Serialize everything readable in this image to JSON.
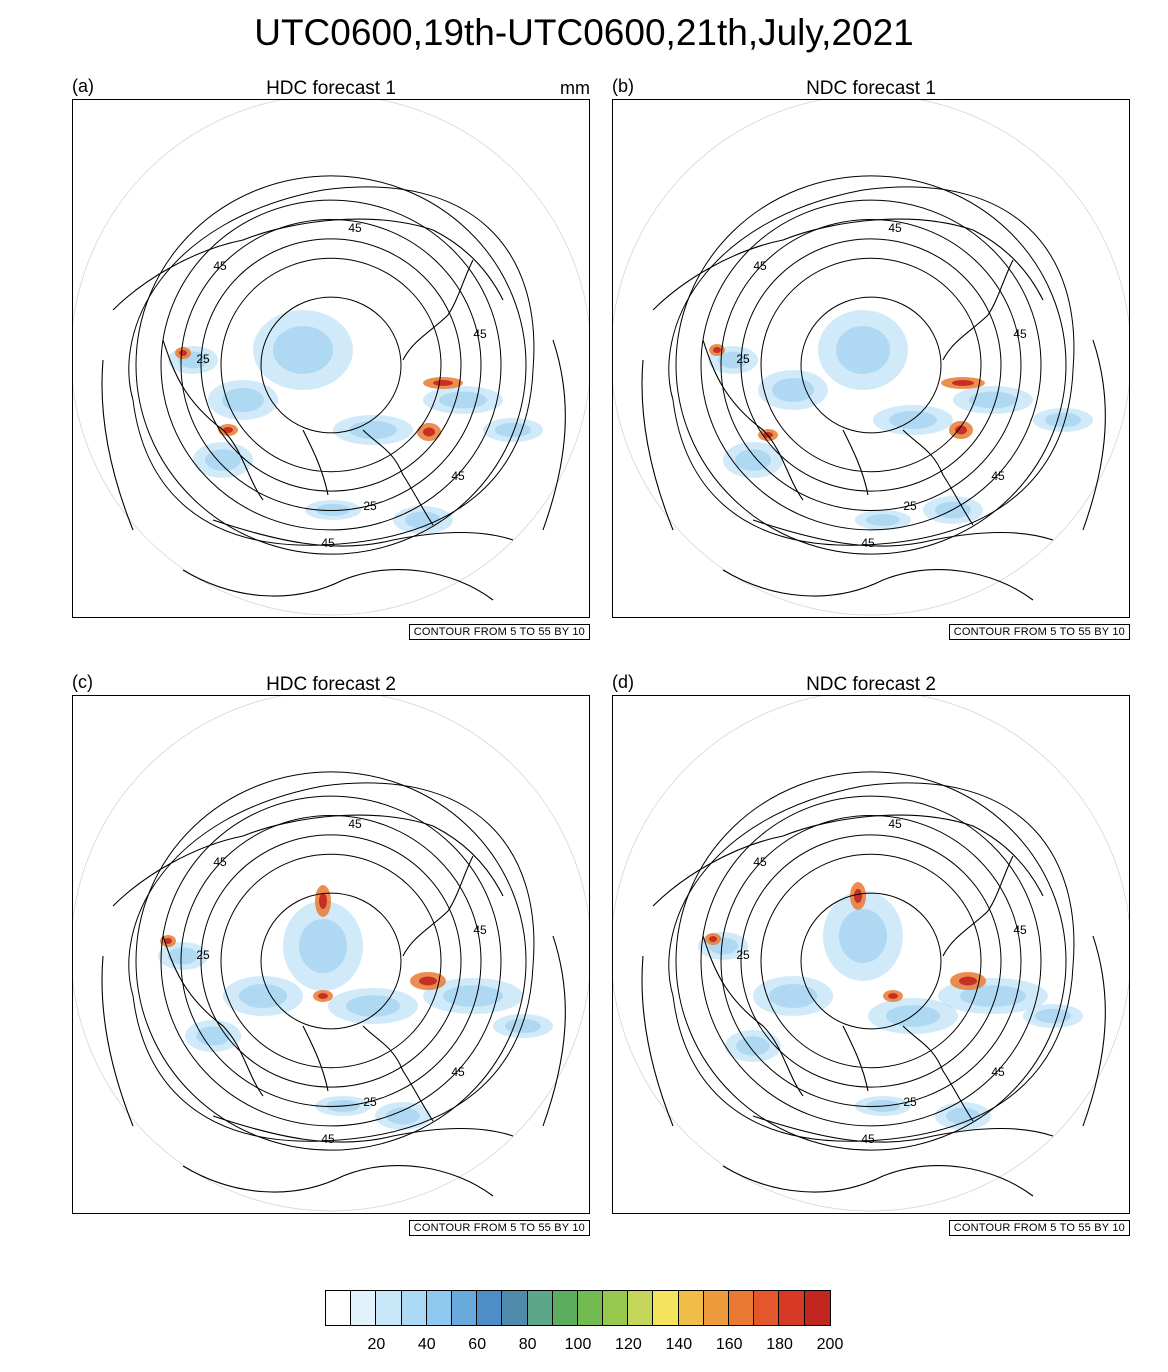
{
  "title": "UTC0600,19th-UTC0600,21th,July,2021",
  "panels": [
    {
      "letter": "(a)",
      "title": "HDC forecast 1",
      "units": "mm",
      "contour_info": "CONTOUR FROM 5 TO 55 BY 10"
    },
    {
      "letter": "(b)",
      "title": "NDC forecast 1",
      "units": "",
      "contour_info": "CONTOUR FROM 5 TO 55 BY 10"
    },
    {
      "letter": "(c)",
      "title": "HDC forecast 2",
      "units": "",
      "contour_info": "CONTOUR FROM 5 TO 55 BY 10"
    },
    {
      "letter": "(d)",
      "title": "NDC forecast 2",
      "units": "",
      "contour_info": "CONTOUR FROM 5 TO 55 BY 10"
    }
  ],
  "contour_labels": [
    "45",
    "45",
    "25",
    "45",
    "45",
    "25",
    "45"
  ],
  "colorbar": {
    "colors": [
      "#ffffff",
      "#e1f2fb",
      "#c8e7f8",
      "#acd9f4",
      "#8ec8ee",
      "#6aa9dc",
      "#4d8ec8",
      "#4f8aaa",
      "#5ea68a",
      "#5dad5e",
      "#72bb4f",
      "#97c94e",
      "#c3d659",
      "#f3e35d",
      "#f0bd49",
      "#ee9b3e",
      "#ea7a33",
      "#e4562b",
      "#d63a25",
      "#c1261f"
    ],
    "labels": [
      "20",
      "40",
      "60",
      "80",
      "100",
      "120",
      "140",
      "160",
      "180",
      "200"
    ]
  }
}
